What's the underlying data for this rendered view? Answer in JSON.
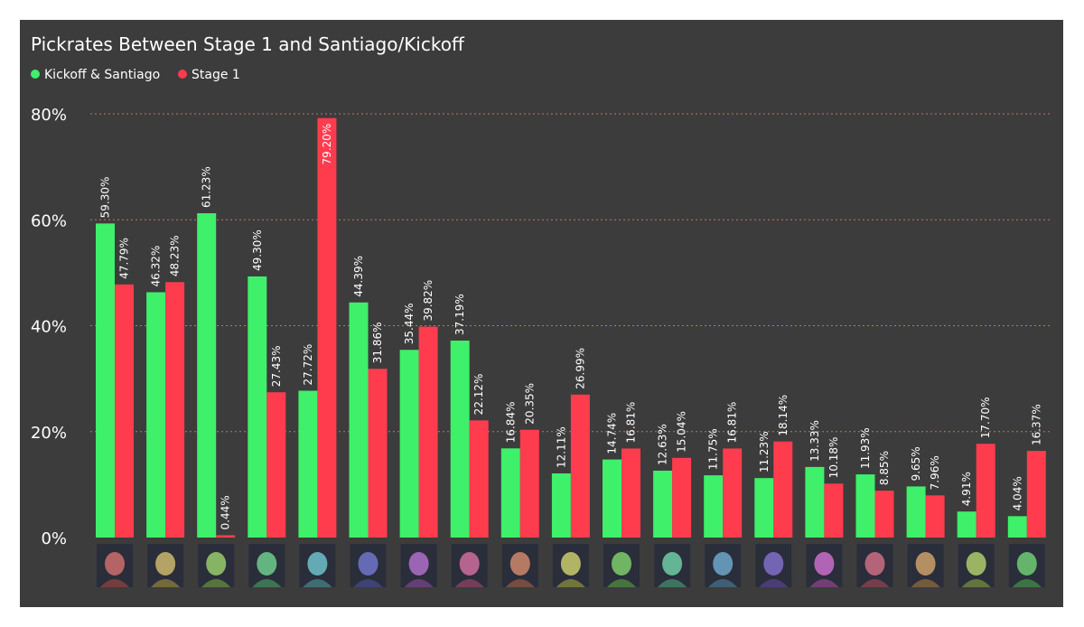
{
  "colors": {
    "background": "#3c3c3c",
    "kickoff": "#3ef06a",
    "stage1": "#ff3b4e",
    "gridline": "#c87060",
    "text": "#ffffff"
  },
  "chart_data": {
    "type": "bar",
    "title": "Pickrates Between Stage 1 and Santiago/Kickoff",
    "xlabel": "",
    "ylabel": "",
    "legend_position": "top-left",
    "grid": true,
    "ylim": [
      0,
      80
    ],
    "yticks": [
      {
        "value": 0,
        "label": "0%"
      },
      {
        "value": 20,
        "label": "20%"
      },
      {
        "value": 40,
        "label": "40%"
      },
      {
        "value": 60,
        "label": "60%"
      },
      {
        "value": 80,
        "label": "80%"
      }
    ],
    "category_icons": [
      "viper-portrait-icon",
      "omen-portrait-icon",
      "yoru-portrait-icon",
      "sova-portrait-icon",
      "neon-portrait-icon",
      "astra-portrait-icon",
      "harbor-portrait-icon",
      "iso-portrait-icon",
      "raze-portrait-icon",
      "skye-portrait-icon",
      "breach-portrait-icon",
      "killjoy-portrait-icon",
      "chamber-portrait-icon",
      "cypher-portrait-icon",
      "jett-portrait-icon",
      "gekko-portrait-icon",
      "kayo-portrait-icon",
      "deadlock-portrait-icon",
      "fade-portrait-icon"
    ],
    "series": [
      {
        "name": "Kickoff & Santiago",
        "color": "#3ef06a",
        "values": [
          59.3,
          46.32,
          61.23,
          49.3,
          27.72,
          44.39,
          35.44,
          37.19,
          16.84,
          12.11,
          14.74,
          12.63,
          11.75,
          11.23,
          13.33,
          11.93,
          9.65,
          4.91,
          4.04
        ],
        "labels": [
          "59.30%",
          "46.32%",
          "61.23%",
          "49.30%",
          "27.72%",
          "44.39%",
          "35.44%",
          "37.19%",
          "16.84%",
          "12.11%",
          "14.74%",
          "12.63%",
          "11.75%",
          "11.23%",
          "13.33%",
          "11.93%",
          "9.65%",
          "4.91%",
          "4.04%"
        ]
      },
      {
        "name": "Stage 1",
        "color": "#ff3b4e",
        "values": [
          47.79,
          48.23,
          0.44,
          27.43,
          79.2,
          31.86,
          39.82,
          22.12,
          20.35,
          26.99,
          16.81,
          15.04,
          16.81,
          18.14,
          10.18,
          8.85,
          7.96,
          17.7,
          16.37
        ],
        "labels": [
          "47.79%",
          "48.23%",
          "0.44%",
          "27.43%",
          "79.20%",
          "31.86%",
          "39.82%",
          "22.12%",
          "20.35%",
          "26.99%",
          "16.81%",
          "15.04%",
          "16.81%",
          "18.14%",
          "10.18%",
          "8.85%",
          "7.96%",
          "17.70%",
          "16.37%"
        ]
      }
    ]
  }
}
